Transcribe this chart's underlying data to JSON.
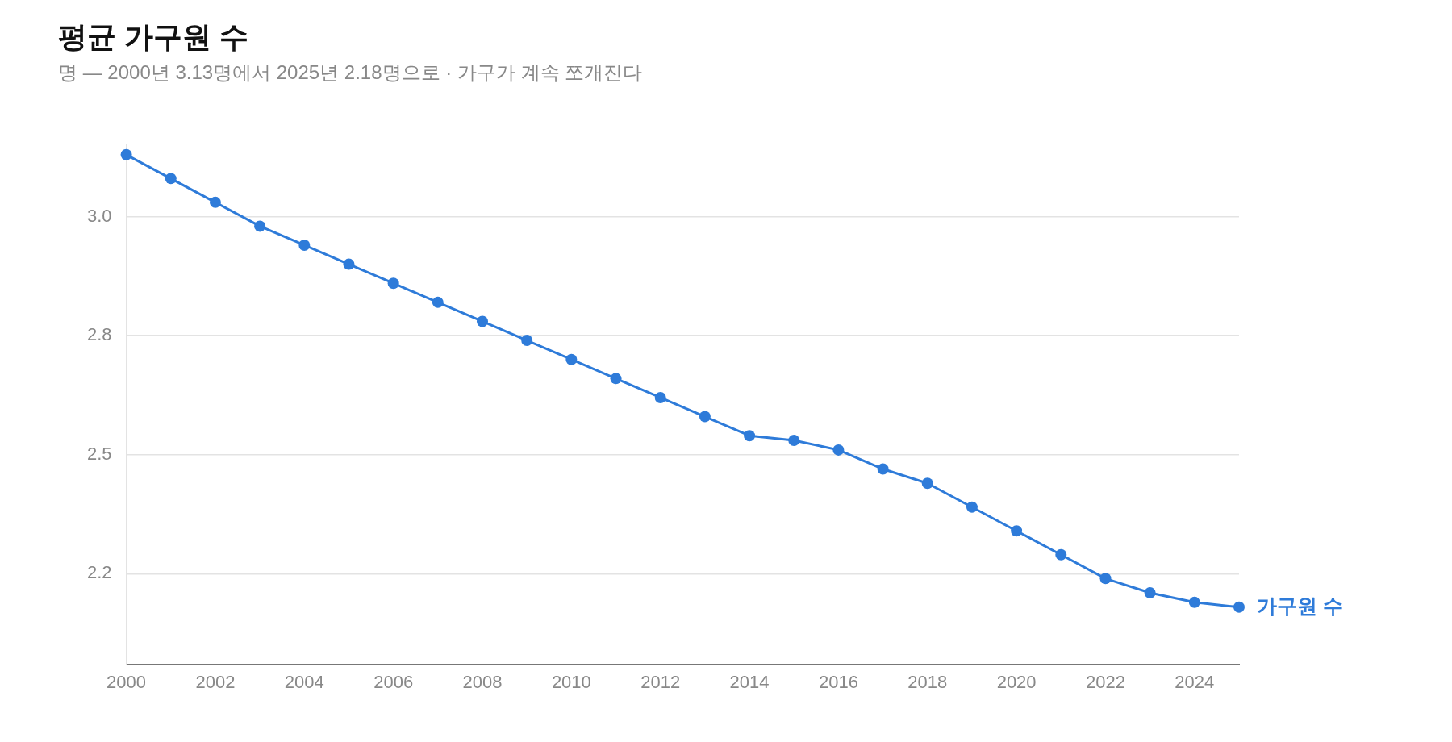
{
  "chart_data": {
    "type": "line",
    "title": "평균 가구원 수",
    "subtitle": "명 — 2000년 3.13명에서 2025년 2.18명으로 · 가구가 계속 쪼개진다",
    "x": [
      2000,
      2001,
      2002,
      2003,
      2004,
      2005,
      2006,
      2007,
      2008,
      2009,
      2010,
      2011,
      2012,
      2013,
      2014,
      2015,
      2016,
      2017,
      2018,
      2019,
      2020,
      2021,
      2022,
      2023,
      2024,
      2025
    ],
    "series": [
      {
        "name": "가구원 수",
        "color": "#2e7bd9",
        "values": [
          3.13,
          3.08,
          3.03,
          2.98,
          2.94,
          2.9,
          2.86,
          2.82,
          2.78,
          2.74,
          2.7,
          2.66,
          2.62,
          2.58,
          2.54,
          2.53,
          2.51,
          2.47,
          2.44,
          2.39,
          2.34,
          2.29,
          2.24,
          2.21,
          2.19,
          2.18
        ]
      }
    ],
    "xlim": [
      2000,
      2025
    ],
    "xticks": [
      2000,
      2002,
      2004,
      2006,
      2008,
      2010,
      2012,
      2014,
      2016,
      2018,
      2020,
      2022,
      2024
    ],
    "ylim": [
      2.06,
      3.15
    ],
    "yticks": [
      {
        "value": 2.25,
        "label": "2.2"
      },
      {
        "value": 2.5,
        "label": "2.5"
      },
      {
        "value": 2.75,
        "label": "2.8"
      },
      {
        "value": 3,
        "label": "3.0"
      }
    ],
    "grid": "y",
    "legend": false,
    "marker": "circle",
    "line_style": "solid"
  }
}
